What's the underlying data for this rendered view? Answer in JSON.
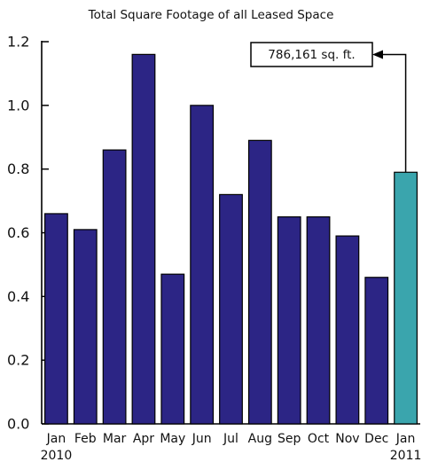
{
  "chart_data": {
    "type": "bar",
    "title": "Total Square Footage of all Leased Space",
    "categories": [
      "Jan",
      "Feb",
      "Mar",
      "Apr",
      "May",
      "Jun",
      "Jul",
      "Aug",
      "Sep",
      "Oct",
      "Nov",
      "Dec",
      "Jan"
    ],
    "values": [
      0.66,
      0.61,
      0.86,
      1.16,
      0.47,
      1.0,
      0.72,
      0.89,
      0.65,
      0.65,
      0.59,
      0.46,
      0.79
    ],
    "year_labels": {
      "first": "2010",
      "last": "2011"
    },
    "yticks": [
      "0.0",
      "0.2",
      "0.4",
      "0.6",
      "0.8",
      "1.0",
      "1.2"
    ],
    "ylim": [
      0,
      1.2
    ],
    "grid": false,
    "colors": {
      "bar": "#2c2585",
      "highlight_bar": "#3aa5ad",
      "outline": "#000000"
    },
    "highlight_index": 12,
    "annotation": {
      "text": "786,161 sq. ft.",
      "target_index": 12
    }
  }
}
